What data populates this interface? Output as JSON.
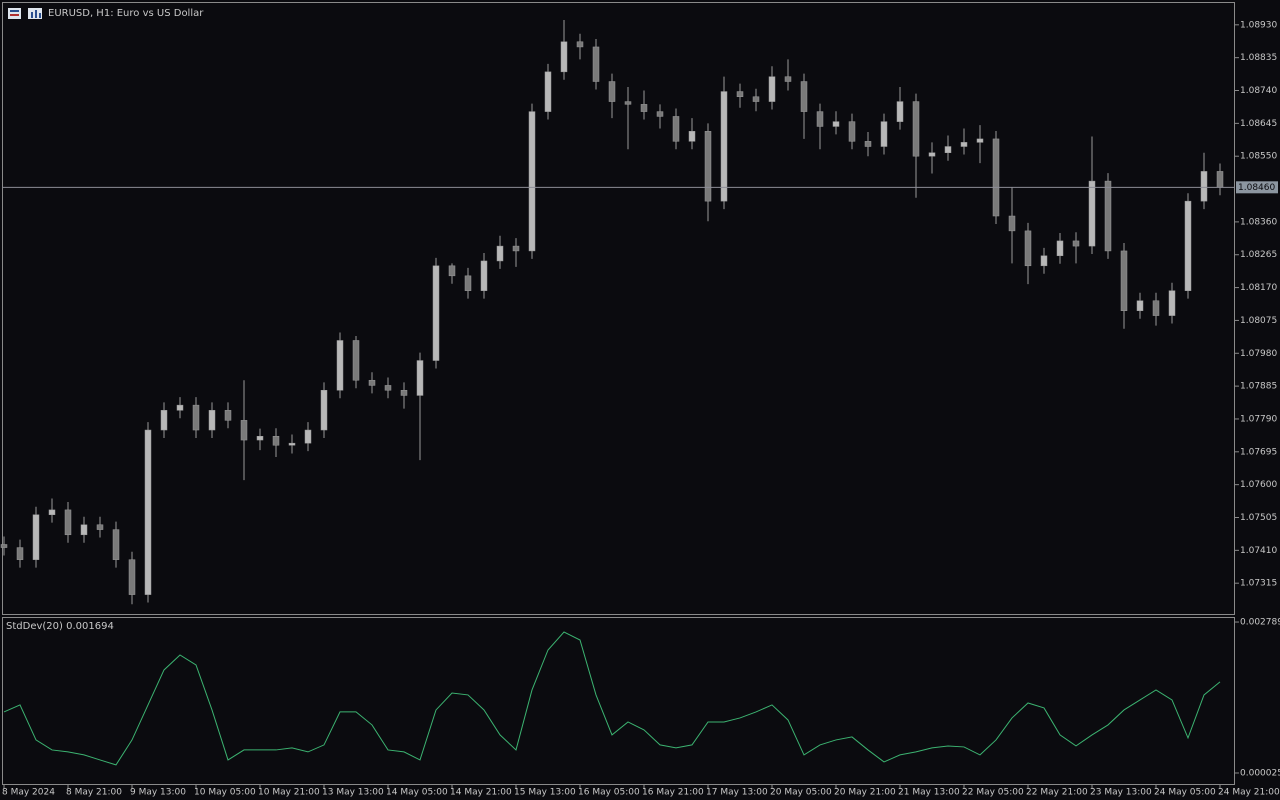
{
  "chart_data": [
    {
      "type": "candlestick",
      "title": "EURUSD, H1:  Euro vs US Dollar",
      "color": "#9a9a9a",
      "ylim": [
        1.07223,
        1.08996
      ],
      "yticks": [
        {
          "value": 1.0893,
          "label": "1.08930"
        },
        1.08835,
        {
          "value": 1.0874,
          "label": "1.08740"
        },
        1.08645,
        {
          "value": 1.0855,
          "label": "1.08550"
        },
        {
          "value": 1.0836,
          "label": "1.08360"
        },
        1.08265,
        {
          "value": 1.0817,
          "label": "1.08170"
        },
        1.08075,
        {
          "value": 1.0798,
          "label": "1.07980"
        },
        1.07885,
        {
          "value": 1.0779,
          "label": "1.07790"
        },
        1.07695,
        {
          "value": 1.076,
          "label": "1.07600"
        },
        1.07505,
        {
          "value": 1.0741,
          "label": "1.07410"
        },
        1.07315
      ],
      "current_price": {
        "value": 1.0846,
        "label": "1.08460"
      },
      "x_labels": [
        "8 May 2024",
        "8 May 21:00",
        "9 May 13:00",
        "10 May 05:00",
        "10 May 21:00",
        "13 May 13:00",
        "14 May 05:00",
        "14 May 21:00",
        "15 May 13:00",
        "16 May 05:00",
        "16 May 21:00",
        "17 May 13:00",
        "20 May 05:00",
        "20 May 21:00",
        "21 May 13:00",
        "22 May 05:00",
        "22 May 21:00",
        "23 May 13:00",
        "24 May 05:00",
        "24 May 21:00"
      ],
      "open": [
        1.07427,
        1.07418,
        1.07383,
        1.07513,
        1.07527,
        1.07455,
        1.07484,
        1.0747,
        1.07383,
        1.07282,
        1.07758,
        1.07815,
        1.0783,
        1.07758,
        1.07815,
        1.07786,
        1.07729,
        1.0774,
        1.07714,
        1.0772,
        1.07758,
        1.07873,
        1.08017,
        1.07902,
        1.07887,
        1.07873,
        1.07858,
        1.07959,
        1.08233,
        1.08204,
        1.08161,
        1.08247,
        1.0829,
        1.08276,
        1.08679,
        1.08794,
        1.08881,
        1.08866,
        1.08766,
        1.08708,
        1.087,
        1.08679,
        1.08665,
        1.08593,
        1.08622,
        1.0842,
        1.08737,
        1.08722,
        1.08708,
        1.0878,
        1.08766,
        1.08679,
        1.08636,
        1.0865,
        1.08593,
        1.08578,
        1.0865,
        1.08708,
        1.0855,
        1.0856,
        1.08578,
        1.0859,
        1.086,
        1.08377,
        1.08334,
        1.08233,
        1.08262,
        1.08305,
        1.0829,
        1.08478,
        1.08276,
        1.08103,
        1.08132,
        1.08089,
        1.08161,
        1.0842,
        1.08506
      ],
      "high": [
        1.0745,
        1.07441,
        1.07536,
        1.0756,
        1.0755,
        1.07507,
        1.07507,
        1.07493,
        1.07406,
        1.07781,
        1.07838,
        1.07853,
        1.07853,
        1.07838,
        1.07838,
        1.07902,
        1.07762,
        1.07763,
        1.07745,
        1.07781,
        1.07896,
        1.0804,
        1.0803,
        1.07925,
        1.0791,
        1.07896,
        1.07982,
        1.08256,
        1.0824,
        1.08227,
        1.0827,
        1.0832,
        1.08313,
        1.08702,
        1.08817,
        1.08944,
        1.08904,
        1.08889,
        1.08789,
        1.0875,
        1.0874,
        1.087,
        1.08688,
        1.0866,
        1.08645,
        1.0878,
        1.0876,
        1.08745,
        1.0881,
        1.0883,
        1.08789,
        1.08702,
        1.0868,
        1.08673,
        1.0862,
        1.08673,
        1.0875,
        1.08731,
        1.0859,
        1.0861,
        1.0863,
        1.0864,
        1.08623,
        1.0846,
        1.08357,
        1.08285,
        1.08328,
        1.0833,
        1.08607,
        1.08501,
        1.08299,
        1.08155,
        1.08155,
        1.08184,
        1.08443,
        1.0856,
        1.08529
      ],
      "low": [
        1.07395,
        1.0736,
        1.0736,
        1.0749,
        1.07432,
        1.07432,
        1.07447,
        1.0736,
        1.07254,
        1.07259,
        1.07735,
        1.07792,
        1.07735,
        1.07735,
        1.07763,
        1.07613,
        1.077,
        1.0768,
        1.0769,
        1.07697,
        1.07735,
        1.0785,
        1.07879,
        1.07864,
        1.0785,
        1.0782,
        1.07671,
        1.07936,
        1.08181,
        1.08138,
        1.08138,
        1.08224,
        1.0823,
        1.08253,
        1.08656,
        1.08771,
        1.0883,
        1.08743,
        1.0866,
        1.0857,
        1.08656,
        1.0863,
        1.0857,
        1.0857,
        1.08362,
        1.08397,
        1.0869,
        1.0868,
        1.08685,
        1.0874,
        1.086,
        1.0857,
        1.08613,
        1.0857,
        1.0855,
        1.08555,
        1.08627,
        1.0843,
        1.085,
        1.08537,
        1.08555,
        1.0853,
        1.08354,
        1.0824,
        1.0818,
        1.0821,
        1.08239,
        1.0824,
        1.08267,
        1.08253,
        1.08051,
        1.0808,
        1.0806,
        1.08066,
        1.08138,
        1.08397,
        1.08437
      ],
      "close": [
        1.07418,
        1.07383,
        1.07513,
        1.07527,
        1.07455,
        1.07484,
        1.0747,
        1.07383,
        1.07282,
        1.07758,
        1.07815,
        1.0783,
        1.07758,
        1.07815,
        1.07786,
        1.07729,
        1.0774,
        1.07714,
        1.0772,
        1.07758,
        1.07873,
        1.08017,
        1.07902,
        1.07887,
        1.07873,
        1.07858,
        1.07959,
        1.08233,
        1.08204,
        1.08161,
        1.08247,
        1.0829,
        1.08276,
        1.08679,
        1.08794,
        1.08881,
        1.08866,
        1.08766,
        1.08708,
        1.087,
        1.08679,
        1.08665,
        1.08593,
        1.08622,
        1.0842,
        1.08737,
        1.08722,
        1.08708,
        1.0878,
        1.08766,
        1.08679,
        1.08636,
        1.0865,
        1.08593,
        1.08578,
        1.0865,
        1.08708,
        1.0855,
        1.0856,
        1.08578,
        1.0859,
        1.086,
        1.08377,
        1.08334,
        1.08233,
        1.08262,
        1.08305,
        1.0829,
        1.08478,
        1.08276,
        1.08103,
        1.08132,
        1.08089,
        1.08161,
        1.0842,
        1.08506,
        1.0846
      ]
    },
    {
      "type": "line",
      "title": "StdDev(20) 0.001694",
      "color": "#3cb371",
      "ylim": [
        -0.000195,
        0.002881
      ],
      "yticks": [
        0.002789,
        2.5e-05
      ],
      "values": [
        0.001143,
        0.001271,
        0.00063,
        0.000447,
        0.000411,
        0.000356,
        0.000264,
        0.000173,
        0.00063,
        0.001271,
        0.001911,
        0.002186,
        0.002003,
        0.001179,
        0.000264,
        0.000447,
        0.000447,
        0.000447,
        0.000484,
        0.000411,
        0.000539,
        0.001143,
        0.001143,
        0.000905,
        0.000447,
        0.000411,
        0.000264,
        0.001179,
        0.00149,
        0.001454,
        0.001179,
        0.000722,
        0.000447,
        0.001545,
        0.002277,
        0.002606,
        0.00246,
        0.001454,
        0.000722,
        0.000959,
        0.000813,
        0.000539,
        0.000484,
        0.000539,
        0.000959,
        0.000959,
        0.001033,
        0.001143,
        0.001271,
        0.000996,
        0.000356,
        0.000539,
        0.00063,
        0.000685,
        0.000447,
        0.000227,
        0.000356,
        0.000411,
        0.000484,
        0.00052,
        0.000502,
        0.000356,
        0.00063,
        0.001033,
        0.001307,
        0.001216,
        0.000722,
        0.00052,
        0.000722,
        0.000905,
        0.001179,
        0.001362,
        0.001545,
        0.001362,
        0.000667,
        0.001454,
        0.001694
      ]
    }
  ]
}
